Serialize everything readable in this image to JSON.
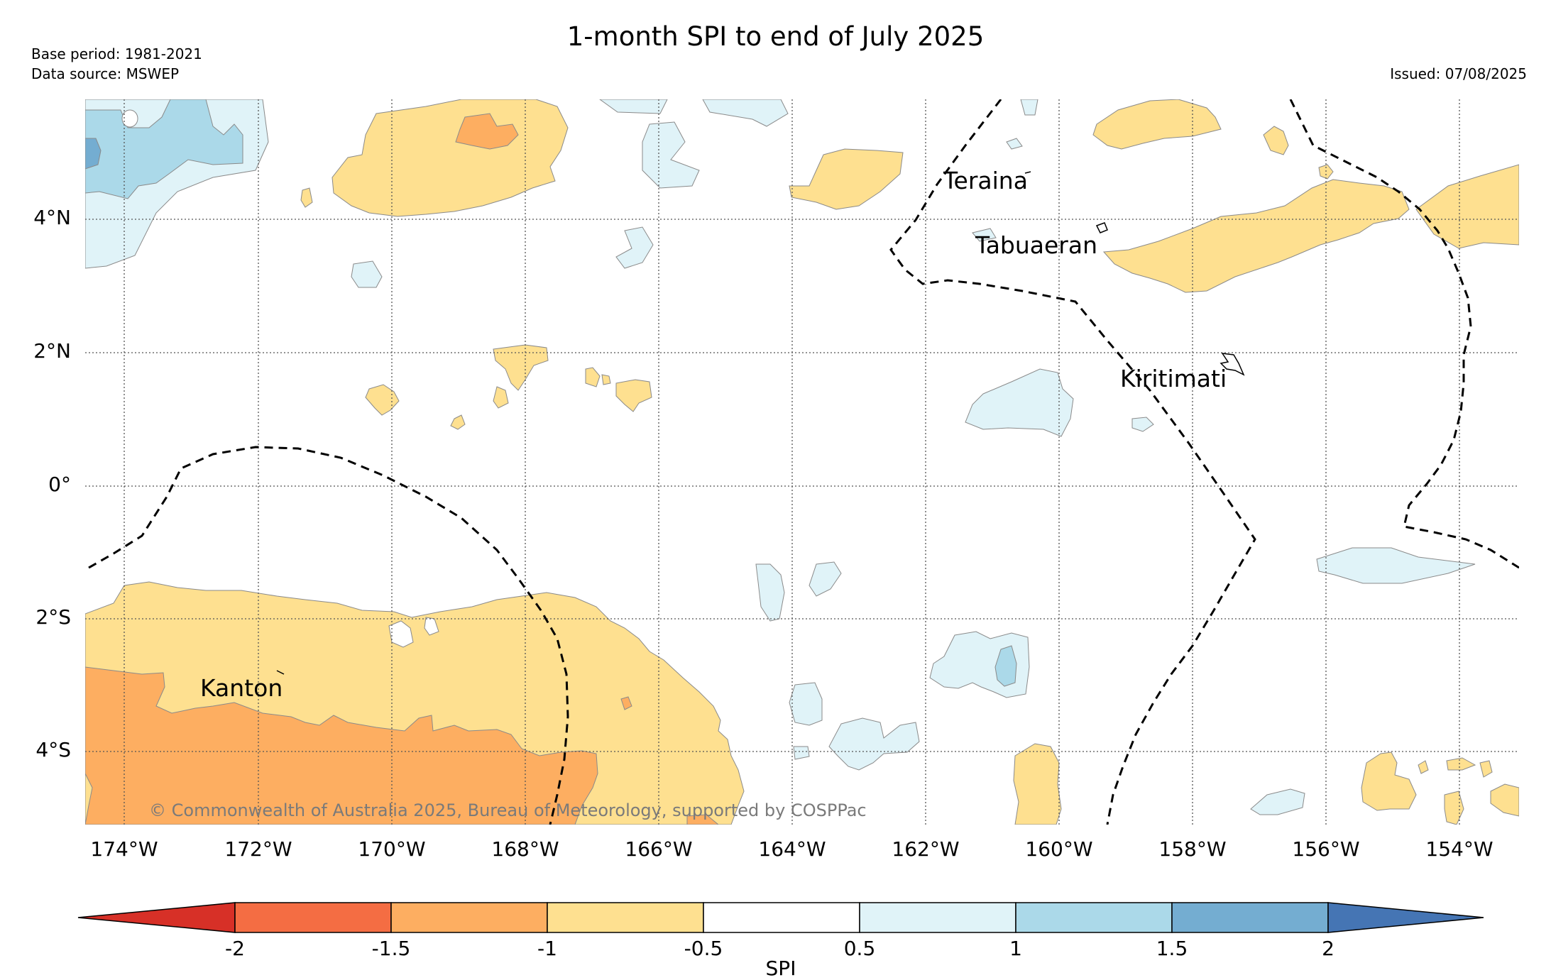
{
  "title": "1-month SPI to end of July 2025",
  "base_period": "Base period: 1981-2021",
  "data_source": "Data source: MSWEP",
  "issued": "Issued: 07/08/2025",
  "copyright": "© Commonwealth of Australia 2025, Bureau of Meteorology, supported by COSPPac",
  "lat_ticks": [
    "4°N",
    "2°N",
    "0°",
    "2°S",
    "4°S"
  ],
  "lon_ticks": [
    "174°W",
    "172°W",
    "170°W",
    "168°W",
    "166°W",
    "164°W",
    "162°W",
    "160°W",
    "158°W",
    "156°W",
    "154°W"
  ],
  "places": {
    "teraina": "Teraina",
    "tabuaeran": "Tabuaeran",
    "kiritimati": "Kiritimati",
    "kanton": "Kanton"
  },
  "colorbar": {
    "label": "SPI",
    "ticks": [
      "-2",
      "-1.5",
      "-1",
      "-0.5",
      "0.5",
      "1",
      "1.5",
      "2"
    ],
    "colors": {
      "below_-2": "#d73027",
      "-2_-1.5": "#f46d43",
      "-1.5_-1": "#fdae61",
      "-1_-0.5": "#fee090",
      "-0.5_0.5": "#ffffff",
      "0.5_1": "#e0f3f8",
      "1_1.5": "#abd9e9",
      "1.5_2": "#74add1",
      "above_2": "#4575b4"
    }
  }
}
